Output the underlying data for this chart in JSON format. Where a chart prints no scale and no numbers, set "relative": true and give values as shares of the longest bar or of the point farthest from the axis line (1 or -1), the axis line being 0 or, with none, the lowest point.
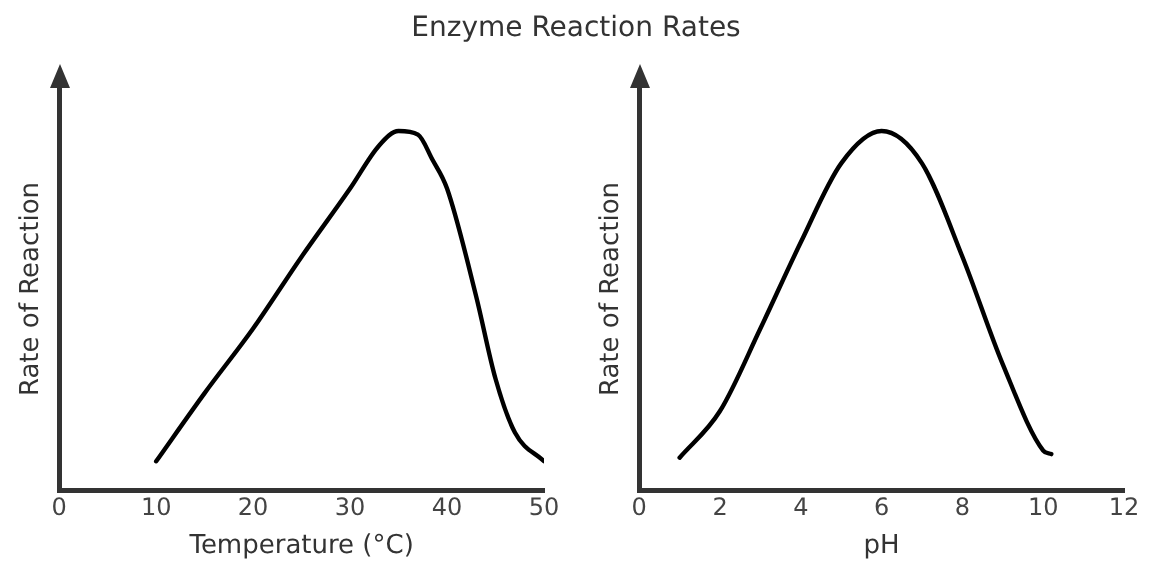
{
  "chart_data": [
    {
      "type": "line",
      "title": "Enzyme Reaction Rates",
      "xlabel": "Temperature (°C)",
      "ylabel": "Rate of Reaction",
      "relative": true,
      "xlim": [
        0,
        50
      ],
      "xticks": [
        0,
        10,
        20,
        30,
        40,
        50
      ],
      "grid": false,
      "legend": false,
      "marker": "none",
      "line_style": "solid",
      "series": [
        {
          "color": "#000000",
          "x": [
            10,
            15,
            20,
            25,
            30,
            33,
            35,
            37,
            38.5,
            40,
            43,
            45,
            47,
            50
          ],
          "values": [
            0.08,
            0.27,
            0.45,
            0.65,
            0.84,
            0.96,
            1,
            0.99,
            0.92,
            0.84,
            0.54,
            0.31,
            0.16,
            0.08
          ]
        }
      ]
    },
    {
      "type": "line",
      "xlabel": "pH",
      "ylabel": "Rate of Reaction",
      "relative": true,
      "xlim": [
        0,
        12
      ],
      "xticks": [
        0,
        2,
        4,
        6,
        8,
        10,
        12
      ],
      "grid": false,
      "legend": false,
      "marker": "none",
      "line_style": "solid",
      "series": [
        {
          "color": "#000000",
          "x": [
            1,
            2,
            3,
            4,
            5,
            6,
            7,
            8,
            9,
            10,
            10.2
          ],
          "values": [
            0.09,
            0.22,
            0.45,
            0.69,
            0.91,
            1,
            0.91,
            0.65,
            0.35,
            0.11,
            0.1
          ]
        }
      ]
    }
  ]
}
